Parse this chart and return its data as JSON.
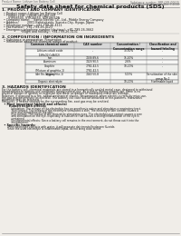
{
  "bg_color": "#f0ede8",
  "header_left": "Product Name: Lithium Ion Battery Cell",
  "header_right_line1": "Substance number: SBR-048-00615",
  "header_right_line2": "Established / Revision: Dec.7,2010",
  "title": "Safety data sheet for chemical products (SDS)",
  "s1_title": "1. PRODUCT AND COMPANY IDENTIFICATION",
  "s1_lines": [
    "  • Product name: Lithium Ion Battery Cell",
    "  • Product code: Cylindrical-type cell",
    "       SYR88500, SYR18650, SYR18650A",
    "  • Company name:    Sanyo Electric Co., Ltd., Mobile Energy Company",
    "  • Address:         2001 Kamitakaido, Sumoto-City, Hyogo, Japan",
    "  • Telephone number:  +81-799-26-4111",
    "  • Fax number:  +81-799-26-4123",
    "  • Emergency telephone number (daytime): +81-799-26-3662",
    "                      (Night and holiday): +81-799-26-3131"
  ],
  "s2_title": "2. COMPOSITION / INFORMATION ON INGREDIENTS",
  "s2_intro": "  • Substance or preparation: Preparation",
  "s2_sub": "  • Information about the chemical nature of product:",
  "tbl_cols": [
    28,
    82,
    122,
    162,
    197
  ],
  "tbl_headers": [
    "Common chemical name",
    "CAS number",
    "Concentration /\nConcentration range",
    "Classification and\nhazard labeling"
  ],
  "tbl_rows": [
    [
      "Lithium cobalt oxide\n(LiMnO2·CoNiO2)",
      "-",
      "30-50%",
      "-"
    ],
    [
      "Iron",
      "7439-89-6",
      "15-20%",
      "-"
    ],
    [
      "Aluminum",
      "7429-90-5",
      "2-6%",
      "-"
    ],
    [
      "Graphite\n(Mixture of graphite-1)\n(Art No. of graphite-1)",
      "7782-42-5\n7782-42-5",
      "10-20%",
      "-"
    ],
    [
      "Copper",
      "7440-50-8",
      "5-15%",
      "Sensitization of the skin\ngroup No.2"
    ],
    [
      "Organic electrolyte",
      "-",
      "10-20%",
      "Flammable liquid"
    ]
  ],
  "tbl_row_heights": [
    8,
    4.5,
    4.5,
    9,
    8,
    4.5
  ],
  "s3_title": "3. HAZARDS IDENTIFICATION",
  "s3_para": [
    "For the battery cell, chemical materials are stored in a hermetically sealed metal case, designed to withstand",
    "temperatures in battery-use conditions during normal use. As a result, during normal use, there is no",
    "physical danger of ignition or explosion and there no danger of hazardous materials leakage.",
    "However, if exposed to a fire, added mechanical shocks, decomposed, when electric current by miss-use,",
    "the gas maybe emitted (or ejected). The battery cell case will be breached or fire-patterns. Hazardous",
    "materials may be released.",
    "Moreover, if heated strongly by the surrounding fire, soot gas may be emitted."
  ],
  "s3_b1": "  • Most important hazard and effects:",
  "s3_b1_sub": "       Human health effects:",
  "s3_b1_detail": [
    "            Inhalation: The release of the electrolyte has an anesthesia action and stimulates a respiratory tract.",
    "            Skin contact: The release of the electrolyte stimulates a skin. The electrolyte skin contact causes a",
    "            sore and stimulation on the skin.",
    "            Eye contact: The release of the electrolyte stimulates eyes. The electrolyte eye contact causes a sore",
    "            and stimulation on the eye. Especially, a substance that causes a strong inflammation of the eye is",
    "            contained.",
    "            Environmental effects: Since a battery cell remains in the environment, do not throw out it into the",
    "            environment."
  ],
  "s3_b2": "  • Specific hazards:",
  "s3_b2_detail": [
    "       If the electrolyte contacts with water, it will generate detrimental hydrogen fluoride.",
    "       Since the used electrolyte is inflammable liquid, do not bring close to fire."
  ]
}
